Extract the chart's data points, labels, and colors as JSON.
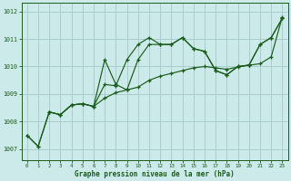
{
  "title": "Graphe pression niveau de la mer (hPa)",
  "bg_color": "#cceaea",
  "grid_color": "#aacccc",
  "line_color": "#1a5c1a",
  "xlim": [
    -0.5,
    23.5
  ],
  "ylim": [
    1006.6,
    1012.3
  ],
  "yticks": [
    1007,
    1008,
    1009,
    1010,
    1011,
    1012
  ],
  "xticks": [
    0,
    1,
    2,
    3,
    4,
    5,
    6,
    7,
    8,
    9,
    10,
    11,
    12,
    13,
    14,
    15,
    16,
    17,
    18,
    19,
    20,
    21,
    22,
    23
  ],
  "series1_x": [
    0,
    1,
    2,
    3,
    4,
    5,
    6,
    7,
    8,
    9,
    10,
    11,
    12,
    13,
    14,
    15,
    16,
    17,
    18,
    19,
    20,
    21,
    22,
    23
  ],
  "series1_y": [
    1007.5,
    1007.1,
    1008.35,
    1008.25,
    1008.6,
    1008.65,
    1008.55,
    1008.85,
    1009.05,
    1009.15,
    1009.25,
    1009.5,
    1009.65,
    1009.75,
    1009.85,
    1009.95,
    1010.0,
    1009.95,
    1009.9,
    1009.98,
    1010.05,
    1010.1,
    1010.35,
    1011.8
  ],
  "series2_x": [
    0,
    1,
    2,
    3,
    4,
    5,
    6,
    7,
    8,
    9,
    10,
    11,
    12,
    13,
    14,
    15,
    16,
    17,
    18,
    19,
    20,
    21,
    22,
    23
  ],
  "series2_y": [
    1007.5,
    1007.1,
    1008.35,
    1008.25,
    1008.6,
    1008.65,
    1008.55,
    1009.35,
    1009.3,
    1010.25,
    1010.8,
    1011.05,
    1010.8,
    1010.8,
    1011.05,
    1010.65,
    1010.55,
    1009.85,
    1009.7,
    1010.0,
    1010.05,
    1010.8,
    1011.05,
    1011.75
  ],
  "series3_x": [
    2,
    3,
    4,
    5,
    6,
    7,
    8,
    9,
    10,
    11,
    12,
    13,
    14,
    15,
    16,
    17,
    18,
    19,
    20,
    21,
    22,
    23
  ],
  "series3_y": [
    1008.35,
    1008.25,
    1008.6,
    1008.65,
    1008.55,
    1010.25,
    1009.35,
    1009.15,
    1010.25,
    1010.8,
    1010.8,
    1010.8,
    1011.05,
    1010.65,
    1010.55,
    1009.85,
    1009.7,
    1010.0,
    1010.05,
    1010.8,
    1011.05,
    1011.75
  ]
}
